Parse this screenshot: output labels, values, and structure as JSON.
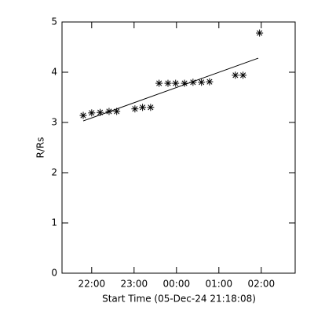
{
  "chart_data": {
    "type": "scatter",
    "xlabel": "Start Time (05-Dec-24 21:18:08)",
    "ylabel": "R/Rs",
    "xlim": [
      21.3,
      26.8
    ],
    "ylim": [
      0,
      5
    ],
    "xticks": [
      {
        "value": 22,
        "label": "22:00"
      },
      {
        "value": 23,
        "label": "23:00"
      },
      {
        "value": 24,
        "label": "00:00"
      },
      {
        "value": 25,
        "label": "01:00"
      },
      {
        "value": 26,
        "label": "02:00"
      }
    ],
    "yticks": [
      0,
      1,
      2,
      3,
      4,
      5
    ],
    "series": [
      {
        "mode": "markers",
        "marker": "asterisk",
        "color": "#000000",
        "x": [
          21.8,
          22.0,
          22.2,
          22.41,
          22.59,
          23.02,
          23.2,
          23.39,
          23.59,
          23.8,
          23.98,
          24.19,
          24.39,
          24.59,
          24.78,
          25.39,
          25.57,
          25.96
        ],
        "values": [
          3.14,
          3.19,
          3.2,
          3.22,
          3.22,
          3.27,
          3.3,
          3.3,
          3.78,
          3.78,
          3.78,
          3.78,
          3.8,
          3.8,
          3.81,
          3.94,
          3.94,
          4.78
        ]
      },
      {
        "mode": "line",
        "color": "#000000",
        "x": [
          21.8,
          25.93
        ],
        "values": [
          3.03,
          4.28
        ]
      }
    ]
  }
}
